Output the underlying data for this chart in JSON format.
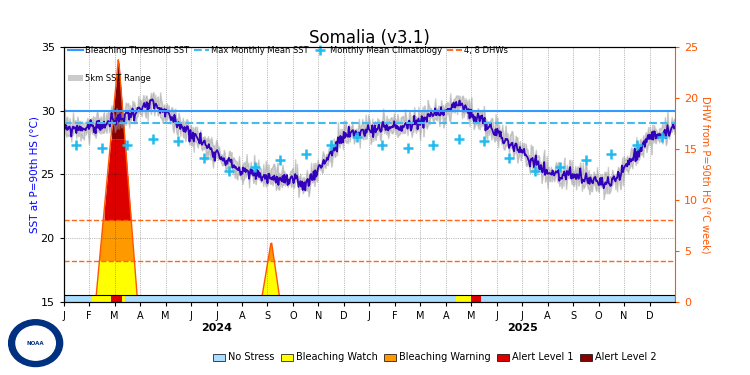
{
  "title": "Somalia (v3.1)",
  "sst_ylim": [
    15,
    35
  ],
  "dhw_ylim": [
    0,
    25
  ],
  "bleaching_threshold": 30.0,
  "max_monthly_mean": 29.0,
  "dhw_4_sst_equiv": 18.2,
  "dhw_8_sst_equiv": 21.4,
  "sst_color": "#3300bb",
  "threshold_color": "#3399ff",
  "max_monthly_color": "#44bbee",
  "dhw_line_color": "#ff5500",
  "clim_color": "#22bbee",
  "range_color": "#999999",
  "alert1_color": "#dd0000",
  "alert2_color": "#880000",
  "watch_color": "#ffff00",
  "warning_color": "#ff9900",
  "nostress_color": "#aaddff",
  "background_color": "#ffffff",
  "ylabel_left": "SST at P=90th HS (°C)",
  "ylabel_right": "DHW from P=90th HS (°C week)",
  "months": [
    "J",
    "F",
    "M",
    "A",
    "M",
    "J",
    "J",
    "A",
    "S",
    "O",
    "N",
    "D",
    "J",
    "F",
    "M",
    "A",
    "M",
    "J",
    "J",
    "A",
    "S",
    "O",
    "N",
    "D"
  ],
  "clim_vals_2024": [
    27.3,
    27.1,
    27.3,
    27.8,
    27.6,
    26.3,
    25.3,
    25.6,
    26.1,
    26.6,
    27.3,
    27.9
  ],
  "clim_vals_2025": [
    27.3,
    27.1,
    27.3,
    27.8,
    27.6,
    26.3,
    25.3,
    25.6,
    26.1,
    26.6,
    27.3,
    27.9
  ]
}
